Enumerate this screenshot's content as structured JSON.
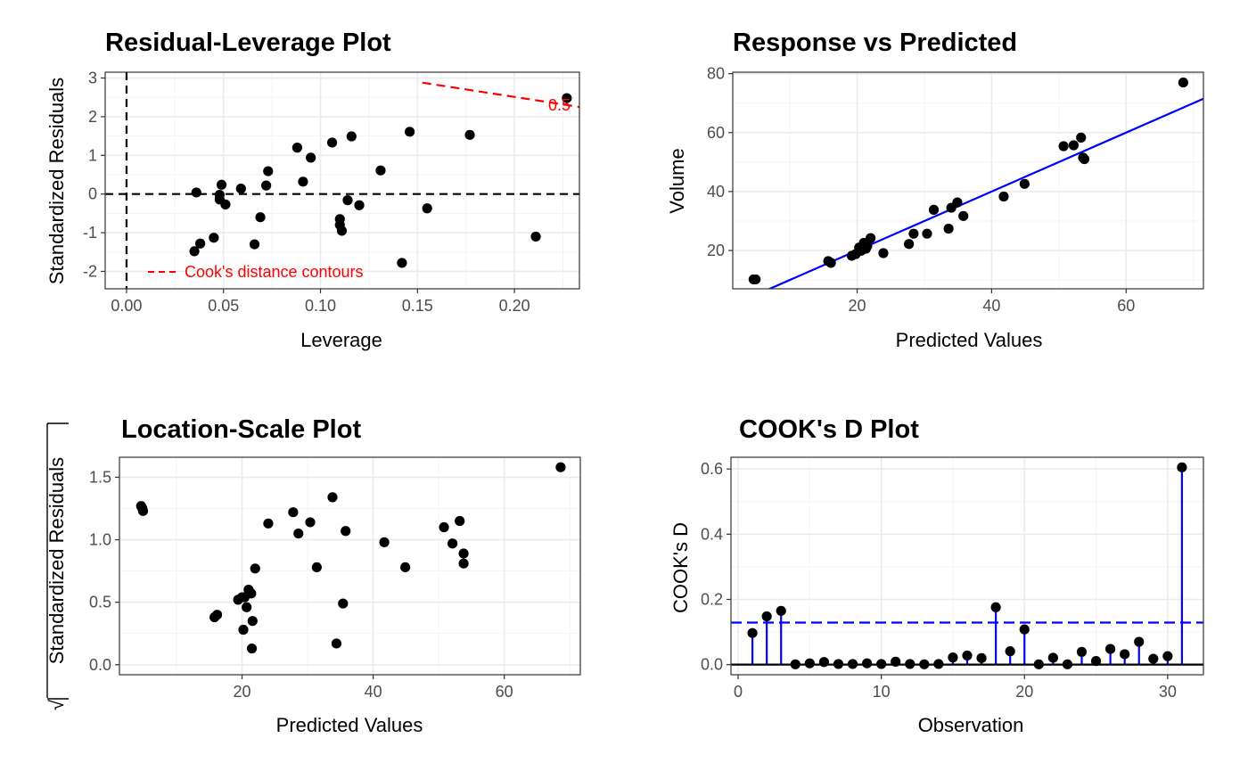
{
  "chart_data": [
    {
      "id": "p1",
      "type": "scatter",
      "title": "Residual-Leverage Plot",
      "xlabel": "Leverage",
      "ylabel": "Standardized Residuals",
      "xlim": [
        -0.011,
        0.2335
      ],
      "ylim": [
        -2.45,
        3.15
      ],
      "xticks": [
        0.0,
        0.05,
        0.1,
        0.15,
        0.2
      ],
      "xtick_labels": [
        "0.00",
        "0.05",
        "0.10",
        "0.15",
        "0.20"
      ],
      "yticks": [
        -2,
        -1,
        0,
        1,
        2,
        3
      ],
      "ytick_labels": [
        "-2",
        "-1",
        "0",
        "1",
        "2",
        "3"
      ],
      "grid": true,
      "reference_lines": [
        {
          "orientation": "horizontal",
          "value": 0,
          "style": "dashed",
          "color": "#000000"
        },
        {
          "orientation": "vertical",
          "value": 0,
          "style": "dashed",
          "color": "#000000"
        }
      ],
      "contours": [
        {
          "label": "0.5",
          "color": "#ff0000",
          "style": "dashed",
          "x": [
            0.1525,
            0.2335
          ],
          "y": [
            2.88,
            2.25
          ]
        }
      ],
      "legend": {
        "label": "Cook's distance contours",
        "color": "#ff0000",
        "style": "dashed",
        "position": "bottom-left"
      },
      "points": {
        "x": [
          0.035,
          0.036,
          0.038,
          0.045,
          0.048,
          0.048,
          0.049,
          0.051,
          0.059,
          0.066,
          0.069,
          0.072,
          0.073,
          0.088,
          0.091,
          0.095,
          0.106,
          0.11,
          0.11,
          0.111,
          0.114,
          0.116,
          0.12,
          0.131,
          0.142,
          0.146,
          0.155,
          0.177,
          0.211,
          0.227
        ],
        "y": [
          -1.48,
          0.04,
          -1.28,
          -1.13,
          -0.02,
          -0.14,
          0.24,
          -0.27,
          0.14,
          -1.3,
          -0.6,
          0.22,
          0.59,
          1.2,
          0.32,
          0.94,
          1.33,
          -0.65,
          -0.8,
          -0.95,
          -0.16,
          1.49,
          -0.29,
          0.61,
          -1.78,
          1.61,
          -0.37,
          1.53,
          -1.1,
          2.48
        ]
      }
    },
    {
      "id": "p2",
      "type": "scatter",
      "title": "Response vs Predicted",
      "xlabel": "Predicted Values",
      "ylabel": "Volume",
      "xlim": [
        1.5,
        71.5
      ],
      "ylim": [
        7.0,
        80.5
      ],
      "xticks": [
        20,
        40,
        60
      ],
      "xtick_labels": [
        "20",
        "40",
        "60"
      ],
      "yticks": [
        20,
        40,
        60,
        80
      ],
      "ytick_labels": [
        "20",
        "40",
        "60",
        "80"
      ],
      "grid": true,
      "reference_lines": [
        {
          "orientation": "identity",
          "x": [
            1.5,
            71.5
          ],
          "y": [
            1.5,
            71.5
          ],
          "style": "solid",
          "color": "#0000ff"
        }
      ],
      "points": {
        "x": [
          4.6,
          4.9,
          15.7,
          16.1,
          19.2,
          19.8,
          20.3,
          20.6,
          21.0,
          21.3,
          21.5,
          22.0,
          23.9,
          27.7,
          28.4,
          30.4,
          31.4,
          33.6,
          34.0,
          34.9,
          35.8,
          41.8,
          44.9,
          50.7,
          52.2,
          53.3,
          53.6,
          53.8,
          68.5
        ],
        "y": [
          10.2,
          10.2,
          16.4,
          15.8,
          18.2,
          18.8,
          21.0,
          19.9,
          22.6,
          20.6,
          21.5,
          24.2,
          19.1,
          22.2,
          25.7,
          25.7,
          33.8,
          27.4,
          34.5,
          36.3,
          31.7,
          38.3,
          42.6,
          55.4,
          55.7,
          58.3,
          51.5,
          51.0,
          77.0
        ]
      }
    },
    {
      "id": "p3",
      "type": "scatter",
      "title": "Location-Scale Plot",
      "xlabel": "Predicted Values",
      "ylabel": "√|Standardized Residuals|",
      "ylabel_radical": "√",
      "ylabel_text": "Standardized Residuals",
      "xlim": [
        1.3,
        71.6
      ],
      "ylim": [
        -0.08,
        1.66
      ],
      "xticks": [
        20,
        40,
        60
      ],
      "xtick_labels": [
        "20",
        "40",
        "60"
      ],
      "yticks": [
        0.0,
        0.5,
        1.0,
        1.5
      ],
      "ytick_labels": [
        "0.0",
        "0.5",
        "1.0",
        "1.5"
      ],
      "grid": true,
      "points": {
        "x": [
          4.6,
          4.8,
          4.9,
          15.8,
          16.2,
          19.4,
          20.0,
          20.2,
          20.4,
          20.7,
          21.0,
          21.4,
          21.6,
          21.5,
          22.0,
          24.0,
          27.8,
          28.6,
          30.4,
          31.4,
          33.8,
          34.4,
          35.4,
          35.8,
          41.7,
          44.9,
          50.8,
          52.1,
          53.2,
          53.8,
          53.8,
          68.6
        ],
        "y": [
          1.27,
          1.25,
          1.23,
          0.38,
          0.4,
          0.52,
          0.54,
          0.28,
          0.54,
          0.46,
          0.6,
          0.57,
          0.35,
          0.13,
          0.77,
          1.13,
          1.22,
          1.05,
          1.14,
          0.78,
          1.34,
          0.17,
          0.49,
          1.07,
          0.98,
          0.78,
          1.1,
          0.97,
          1.15,
          0.89,
          0.81,
          1.58
        ]
      }
    },
    {
      "id": "p4",
      "type": "lollipop",
      "title": "COOK's D Plot",
      "xlabel": "Observation",
      "ylabel": "COOK's D",
      "xlim": [
        -0.5,
        32.5
      ],
      "ylim": [
        -0.031,
        0.636
      ],
      "xticks": [
        0,
        10,
        20,
        30
      ],
      "xtick_labels": [
        "0",
        "10",
        "20",
        "30"
      ],
      "yticks": [
        0.0,
        0.2,
        0.4,
        0.6
      ],
      "ytick_labels": [
        "0.0",
        "0.2",
        "0.4",
        "0.6"
      ],
      "grid": true,
      "stem_color": "#0000ff",
      "threshold": {
        "value": 0.129,
        "style": "dashed",
        "color": "#0000ff"
      },
      "baseline": {
        "value": 0,
        "style": "solid",
        "color": "#000000"
      },
      "observations": [
        1,
        2,
        3,
        4,
        5,
        6,
        7,
        8,
        9,
        10,
        11,
        12,
        13,
        14,
        15,
        16,
        17,
        18,
        19,
        20,
        21,
        22,
        23,
        24,
        25,
        26,
        27,
        28,
        29,
        30,
        31
      ],
      "values": [
        0.097,
        0.148,
        0.165,
        0.001,
        0.004,
        0.008,
        0.002,
        0.002,
        0.004,
        0.002,
        0.009,
        0.002,
        0.001,
        0.002,
        0.022,
        0.028,
        0.02,
        0.176,
        0.041,
        0.108,
        0.001,
        0.021,
        0.001,
        0.039,
        0.011,
        0.048,
        0.032,
        0.07,
        0.018,
        0.026,
        0.605
      ]
    }
  ]
}
